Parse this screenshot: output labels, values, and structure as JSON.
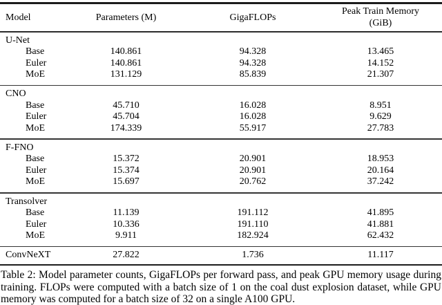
{
  "table": {
    "headers": {
      "model": "Model",
      "parameters": "Parameters (M)",
      "gigaflops": "GigaFLOPs",
      "memory_line1": "Peak Train Memory",
      "memory_line2": "(GiB)"
    },
    "groups": [
      {
        "name": "U-Net",
        "rows": [
          {
            "label": "Base",
            "parameters": "140.861",
            "gigaflops": "94.328",
            "memory": "13.465"
          },
          {
            "label": "Euler",
            "parameters": "140.861",
            "gigaflops": "94.328",
            "memory": "14.152"
          },
          {
            "label": "MoE",
            "parameters": "131.129",
            "gigaflops": "85.839",
            "memory": "21.307"
          }
        ]
      },
      {
        "name": "CNO",
        "rows": [
          {
            "label": "Base",
            "parameters": "45.710",
            "gigaflops": "16.028",
            "memory": "8.951"
          },
          {
            "label": "Euler",
            "parameters": "45.704",
            "gigaflops": "16.028",
            "memory": "9.629"
          },
          {
            "label": "MoE",
            "parameters": "174.339",
            "gigaflops": "55.917",
            "memory": "27.783"
          }
        ]
      },
      {
        "name": "F-FNO",
        "rows": [
          {
            "label": "Base",
            "parameters": "15.372",
            "gigaflops": "20.901",
            "memory": "18.953"
          },
          {
            "label": "Euler",
            "parameters": "15.374",
            "gigaflops": "20.901",
            "memory": "20.164"
          },
          {
            "label": "MoE",
            "parameters": "15.697",
            "gigaflops": "20.762",
            "memory": "37.242"
          }
        ]
      },
      {
        "name": "Transolver",
        "rows": [
          {
            "label": "Base",
            "parameters": "11.139",
            "gigaflops": "191.112",
            "memory": "41.895"
          },
          {
            "label": "Euler",
            "parameters": "10.336",
            "gigaflops": "191.110",
            "memory": "41.881"
          },
          {
            "label": "MoE",
            "parameters": "9.911",
            "gigaflops": "182.924",
            "memory": "62.432"
          }
        ]
      }
    ],
    "footer_row": {
      "label": "ConvNeXT",
      "parameters": "27.822",
      "gigaflops": "1.736",
      "memory": "11.117"
    }
  },
  "caption": "Table 2: Model parameter counts, GigaFLOPs per forward pass, and peak GPU memory usage during training. FLOPs were computed with a batch size of 1 on the coal dust explosion dataset, while GPU memory was computed for a batch size of 32 on a single A100 GPU."
}
